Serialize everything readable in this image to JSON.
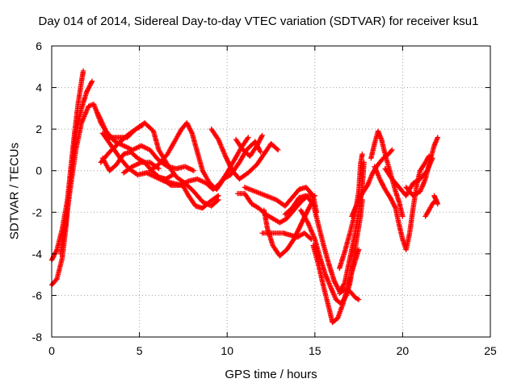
{
  "chart_data": {
    "type": "scatter",
    "title": "Day 014 of 2014, Sidereal Day-to-day VTEC variation (SDTVAR) for receiver ksu1",
    "xlabel": "GPS time / hours",
    "ylabel": "SDTVAR / TECUs",
    "xlim": [
      0,
      25
    ],
    "ylim": [
      -8,
      6
    ],
    "xticks": [
      0,
      5,
      10,
      15,
      20,
      25
    ],
    "yticks": [
      -8,
      -6,
      -4,
      -2,
      0,
      2,
      4,
      6
    ],
    "grid": true,
    "marker": "+",
    "color": "#ff0000",
    "series": [
      {
        "name": "arc1",
        "points": [
          [
            0.0,
            -4.3
          ],
          [
            0.3,
            -3.8
          ],
          [
            0.6,
            -2.8
          ],
          [
            0.9,
            -1.4
          ],
          [
            1.1,
            0.2
          ],
          [
            1.3,
            1.8
          ],
          [
            1.5,
            3.2
          ],
          [
            1.7,
            4.3
          ],
          [
            1.8,
            4.8
          ]
        ]
      },
      {
        "name": "arc2",
        "points": [
          [
            0.0,
            -5.5
          ],
          [
            0.3,
            -5.2
          ],
          [
            0.6,
            -4.2
          ],
          [
            0.8,
            -2.8
          ],
          [
            1.0,
            -1.0
          ],
          [
            1.2,
            0.6
          ],
          [
            1.4,
            1.9
          ],
          [
            1.7,
            3.0
          ],
          [
            2.0,
            3.8
          ],
          [
            2.3,
            4.3
          ]
        ]
      },
      {
        "name": "arc3",
        "points": [
          [
            0.5,
            -4.0
          ],
          [
            0.8,
            -2.5
          ],
          [
            1.1,
            -0.6
          ],
          [
            1.4,
            1.1
          ],
          [
            1.7,
            2.3
          ],
          [
            2.1,
            3.1
          ],
          [
            2.4,
            3.2
          ],
          [
            2.8,
            2.3
          ],
          [
            3.3,
            1.6
          ],
          [
            3.8,
            1.6
          ],
          [
            4.3,
            1.6
          ],
          [
            4.8,
            2.0
          ],
          [
            5.3,
            2.3
          ],
          [
            5.8,
            1.9
          ],
          [
            6.1,
            1.0
          ],
          [
            6.6,
            0.3
          ],
          [
            7.1,
            -0.3
          ],
          [
            7.6,
            -0.6
          ],
          [
            8.1,
            -1.0
          ],
          [
            8.6,
            -1.5
          ],
          [
            9.1,
            -1.7
          ],
          [
            9.5,
            -1.4
          ]
        ]
      },
      {
        "name": "arc4",
        "points": [
          [
            2.6,
            2.8
          ],
          [
            3.1,
            1.9
          ],
          [
            3.6,
            1.4
          ],
          [
            4.1,
            1.2
          ],
          [
            4.6,
            1.0
          ],
          [
            5.1,
            1.2
          ],
          [
            5.6,
            1.0
          ],
          [
            6.1,
            0.5
          ],
          [
            6.6,
            0.2
          ],
          [
            7.1,
            0.1
          ],
          [
            7.6,
            0.2
          ],
          [
            8.1,
            0.0
          ]
        ]
      },
      {
        "name": "arc5",
        "points": [
          [
            2.9,
            1.8
          ],
          [
            3.4,
            1.2
          ],
          [
            3.9,
            0.6
          ],
          [
            4.4,
            0.1
          ],
          [
            4.9,
            -0.2
          ],
          [
            5.4,
            -0.1
          ],
          [
            5.9,
            -0.3
          ],
          [
            6.4,
            -0.5
          ],
          [
            6.9,
            -0.6
          ],
          [
            7.4,
            -0.7
          ]
        ]
      },
      {
        "name": "arc6",
        "points": [
          [
            2.8,
            0.4
          ],
          [
            3.3,
            0.9
          ],
          [
            3.8,
            1.3
          ],
          [
            4.3,
            1.7
          ],
          [
            4.8,
            2.0
          ],
          [
            5.2,
            2.2
          ]
        ]
      },
      {
        "name": "arc7",
        "points": [
          [
            2.9,
            0.6
          ],
          [
            3.3,
            0.0
          ],
          [
            3.7,
            0.3
          ],
          [
            4.1,
            0.8
          ],
          [
            4.5,
            0.9
          ],
          [
            4.9,
            0.6
          ],
          [
            5.3,
            0.4
          ],
          [
            5.7,
            0.0
          ],
          [
            6.1,
            -0.3
          ],
          [
            6.5,
            -0.4
          ],
          [
            6.9,
            -0.2
          ]
        ]
      },
      {
        "name": "arc8",
        "points": [
          [
            4.1,
            -0.1
          ],
          [
            4.6,
            0.2
          ],
          [
            5.1,
            0.4
          ],
          [
            5.6,
            0.4
          ],
          [
            6.1,
            0.1
          ]
        ]
      },
      {
        "name": "arc9",
        "points": [
          [
            5.6,
            0.0
          ],
          [
            6.1,
            0.3
          ],
          [
            6.6,
            0.8
          ],
          [
            7.0,
            1.4
          ],
          [
            7.4,
            2.0
          ],
          [
            7.7,
            2.3
          ],
          [
            8.0,
            1.8
          ],
          [
            8.3,
            0.9
          ],
          [
            8.6,
            0.0
          ],
          [
            9.0,
            -0.6
          ],
          [
            9.4,
            -0.9
          ],
          [
            9.8,
            -0.4
          ],
          [
            10.2,
            -0.2
          ],
          [
            10.7,
            0.4
          ],
          [
            11.1,
            1.0
          ],
          [
            11.6,
            1.4
          ],
          [
            11.9,
            0.9
          ]
        ]
      },
      {
        "name": "arc10",
        "points": [
          [
            6.3,
            -0.4
          ],
          [
            6.8,
            -0.7
          ],
          [
            7.3,
            -0.7
          ],
          [
            7.8,
            -0.5
          ],
          [
            8.3,
            -0.4
          ],
          [
            8.8,
            -0.6
          ],
          [
            9.2,
            -0.9
          ],
          [
            9.6,
            -0.6
          ],
          [
            10.0,
            -0.1
          ],
          [
            10.4,
            0.5
          ],
          [
            10.8,
            1.1
          ],
          [
            11.2,
            1.6
          ]
        ]
      },
      {
        "name": "arc11",
        "points": [
          [
            7.4,
            -0.6
          ],
          [
            7.8,
            -1.2
          ],
          [
            8.2,
            -1.7
          ],
          [
            8.6,
            -1.8
          ],
          [
            9.0,
            -1.5
          ],
          [
            9.5,
            -1.2
          ]
        ]
      },
      {
        "name": "arc12",
        "points": [
          [
            9.1,
            2.0
          ],
          [
            9.5,
            1.5
          ],
          [
            9.9,
            0.7
          ],
          [
            10.3,
            0.0
          ],
          [
            10.7,
            -0.4
          ],
          [
            11.2,
            -0.1
          ],
          [
            11.7,
            0.3
          ],
          [
            12.1,
            0.8
          ],
          [
            12.5,
            1.3
          ],
          [
            12.9,
            1.0
          ]
        ]
      },
      {
        "name": "arc13",
        "points": [
          [
            10.5,
            1.5
          ],
          [
            10.9,
            1.0
          ],
          [
            11.3,
            0.7
          ],
          [
            11.7,
            1.2
          ],
          [
            12.0,
            1.7
          ]
        ]
      },
      {
        "name": "arc14",
        "points": [
          [
            10.6,
            -1.1
          ],
          [
            11.0,
            -1.1
          ],
          [
            11.4,
            -1.6
          ],
          [
            11.8,
            -1.8
          ],
          [
            12.2,
            -2.1
          ],
          [
            12.6,
            -2.3
          ],
          [
            13.0,
            -2.5
          ],
          [
            13.4,
            -2.3
          ],
          [
            13.8,
            -1.9
          ],
          [
            14.2,
            -1.5
          ],
          [
            14.6,
            -1.2
          ],
          [
            15.0,
            -1.2
          ]
        ]
      },
      {
        "name": "arc15",
        "points": [
          [
            11.0,
            -0.8
          ],
          [
            11.6,
            -1.0
          ],
          [
            12.2,
            -1.2
          ],
          [
            12.8,
            -1.4
          ],
          [
            13.3,
            -1.7
          ],
          [
            13.7,
            -1.3
          ],
          [
            14.1,
            -0.9
          ],
          [
            14.5,
            -0.8
          ],
          [
            14.9,
            -1.2
          ],
          [
            15.1,
            -2.0
          ]
        ]
      },
      {
        "name": "arc16",
        "points": [
          [
            12.0,
            -3.0
          ],
          [
            12.4,
            -3.0
          ],
          [
            12.8,
            -3.0
          ],
          [
            13.2,
            -3.0
          ],
          [
            13.6,
            -3.1
          ],
          [
            14.0,
            -3.2
          ],
          [
            14.4,
            -3.0
          ],
          [
            14.8,
            -3.3
          ]
        ]
      },
      {
        "name": "arc17",
        "points": [
          [
            12.1,
            -1.9
          ],
          [
            12.3,
            -2.8
          ],
          [
            12.6,
            -3.6
          ],
          [
            13.0,
            -4.1
          ],
          [
            13.4,
            -3.8
          ],
          [
            13.8,
            -3.3
          ],
          [
            14.2,
            -2.6
          ],
          [
            14.6,
            -1.9
          ],
          [
            14.9,
            -1.4
          ]
        ]
      },
      {
        "name": "arc18",
        "points": [
          [
            13.3,
            -2.1
          ],
          [
            13.7,
            -1.8
          ],
          [
            14.1,
            -1.3
          ],
          [
            14.5,
            -1.2
          ],
          [
            14.9,
            -1.6
          ],
          [
            15.2,
            -2.6
          ],
          [
            15.5,
            -3.6
          ],
          [
            15.8,
            -4.5
          ],
          [
            16.1,
            -5.3
          ],
          [
            16.4,
            -5.8
          ],
          [
            16.7,
            -5.4
          ],
          [
            16.9,
            -4.6
          ],
          [
            17.1,
            -3.8
          ],
          [
            17.3,
            -3.0
          ],
          [
            17.5,
            -2.0
          ],
          [
            17.7,
            -0.8
          ],
          [
            17.8,
            0.4
          ]
        ]
      },
      {
        "name": "arc19",
        "points": [
          [
            14.2,
            -1.9
          ],
          [
            14.6,
            -2.5
          ],
          [
            15.0,
            -3.3
          ],
          [
            15.3,
            -4.2
          ],
          [
            15.6,
            -5.0
          ],
          [
            15.9,
            -5.6
          ],
          [
            16.2,
            -6.2
          ],
          [
            16.5,
            -6.4
          ],
          [
            16.8,
            -6.0
          ],
          [
            17.0,
            -5.4
          ],
          [
            17.2,
            -4.3
          ],
          [
            17.4,
            -3.2
          ],
          [
            17.6,
            -2.2
          ],
          [
            17.7,
            -1.4
          ]
        ]
      },
      {
        "name": "arc20",
        "points": [
          [
            14.9,
            -3.6
          ],
          [
            15.2,
            -4.5
          ],
          [
            15.5,
            -5.6
          ],
          [
            15.8,
            -6.6
          ],
          [
            16.0,
            -7.3
          ],
          [
            16.3,
            -7.1
          ],
          [
            16.6,
            -6.4
          ],
          [
            16.9,
            -5.5
          ],
          [
            17.2,
            -4.6
          ],
          [
            17.5,
            -3.8
          ]
        ]
      },
      {
        "name": "arc21",
        "points": [
          [
            16.4,
            -4.7
          ],
          [
            16.7,
            -3.9
          ],
          [
            17.0,
            -3.0
          ],
          [
            17.3,
            -2.0
          ],
          [
            17.5,
            -1.0
          ],
          [
            17.6,
            0.3
          ],
          [
            17.7,
            0.8
          ]
        ]
      },
      {
        "name": "arc22",
        "points": [
          [
            16.4,
            -5.9
          ],
          [
            16.7,
            -5.7
          ],
          [
            17.0,
            -5.8
          ],
          [
            17.3,
            -6.1
          ],
          [
            17.5,
            -6.2
          ]
        ]
      },
      {
        "name": "arc23",
        "points": [
          [
            17.1,
            -2.2
          ],
          [
            17.4,
            -1.6
          ],
          [
            17.7,
            -1.1
          ],
          [
            18.0,
            -0.7
          ],
          [
            18.3,
            -0.1
          ],
          [
            18.6,
            0.3
          ],
          [
            18.9,
            0.6
          ],
          [
            19.2,
            0.8
          ],
          [
            19.4,
            1.0
          ]
        ]
      },
      {
        "name": "arc24",
        "points": [
          [
            18.2,
            0.6
          ],
          [
            18.4,
            1.3
          ],
          [
            18.6,
            1.9
          ],
          [
            18.8,
            1.5
          ],
          [
            19.0,
            0.8
          ],
          [
            19.2,
            0.2
          ],
          [
            19.4,
            -0.4
          ],
          [
            19.6,
            -1.0
          ],
          [
            19.8,
            -1.5
          ],
          [
            20.0,
            -2.2
          ]
        ]
      },
      {
        "name": "arc25",
        "points": [
          [
            18.4,
            0.2
          ],
          [
            18.7,
            -0.4
          ],
          [
            19.0,
            -0.9
          ],
          [
            19.3,
            -1.3
          ],
          [
            19.6,
            -1.8
          ],
          [
            19.8,
            -2.6
          ],
          [
            20.0,
            -3.3
          ],
          [
            20.2,
            -3.8
          ],
          [
            20.4,
            -3.0
          ],
          [
            20.6,
            -1.8
          ],
          [
            20.8,
            -0.7
          ],
          [
            21.0,
            0.0
          ],
          [
            21.3,
            0.4
          ],
          [
            21.5,
            0.7
          ]
        ]
      },
      {
        "name": "arc26",
        "points": [
          [
            19.0,
            0.1
          ],
          [
            19.4,
            -0.4
          ],
          [
            19.8,
            -0.8
          ],
          [
            20.2,
            -1.2
          ],
          [
            20.6,
            -0.6
          ],
          [
            21.0,
            -0.4
          ],
          [
            21.4,
            0.0
          ],
          [
            21.7,
            0.6
          ]
        ]
      },
      {
        "name": "arc27",
        "points": [
          [
            20.2,
            -0.8
          ],
          [
            20.6,
            -1.2
          ],
          [
            21.0,
            -1.0
          ],
          [
            21.3,
            -0.4
          ],
          [
            21.6,
            0.6
          ],
          [
            21.8,
            1.2
          ],
          [
            22.0,
            1.6
          ]
        ]
      },
      {
        "name": "arc28",
        "points": [
          [
            21.3,
            -2.2
          ],
          [
            21.5,
            -1.9
          ],
          [
            21.7,
            -1.6
          ],
          [
            21.9,
            -1.4
          ]
        ]
      },
      {
        "name": "arc29",
        "points": [
          [
            21.8,
            -1.2
          ],
          [
            21.9,
            -1.4
          ],
          [
            22.0,
            -1.6
          ]
        ]
      }
    ]
  }
}
